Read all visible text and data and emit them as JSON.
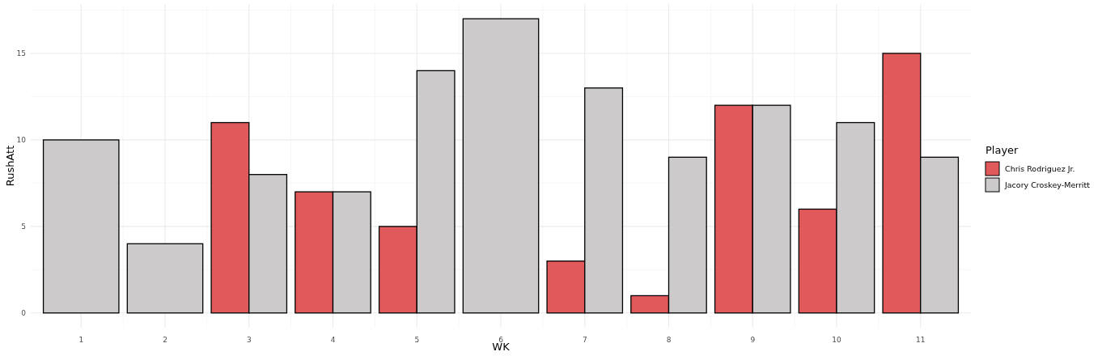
{
  "chart_data": {
    "type": "bar",
    "xlabel": "WK",
    "ylabel": "RushAtt",
    "legend_title": "Player",
    "categories": [
      "1",
      "2",
      "3",
      "4",
      "5",
      "6",
      "7",
      "8",
      "9",
      "10",
      "11"
    ],
    "series": [
      {
        "name": "Chris Rodriguez Jr.",
        "color": "#e05a5c",
        "values": [
          null,
          null,
          11,
          7,
          5,
          null,
          3,
          1,
          12,
          6,
          15
        ]
      },
      {
        "name": "Jacory Croskey-Merritt",
        "color": "#cccacb",
        "values": [
          10,
          4,
          8,
          7,
          14,
          17,
          13,
          9,
          12,
          11,
          9
        ]
      }
    ],
    "ylim": [
      -0.85,
      17.85
    ],
    "yticks": [
      0,
      5,
      10,
      15
    ],
    "grid": true,
    "legend": "right"
  }
}
